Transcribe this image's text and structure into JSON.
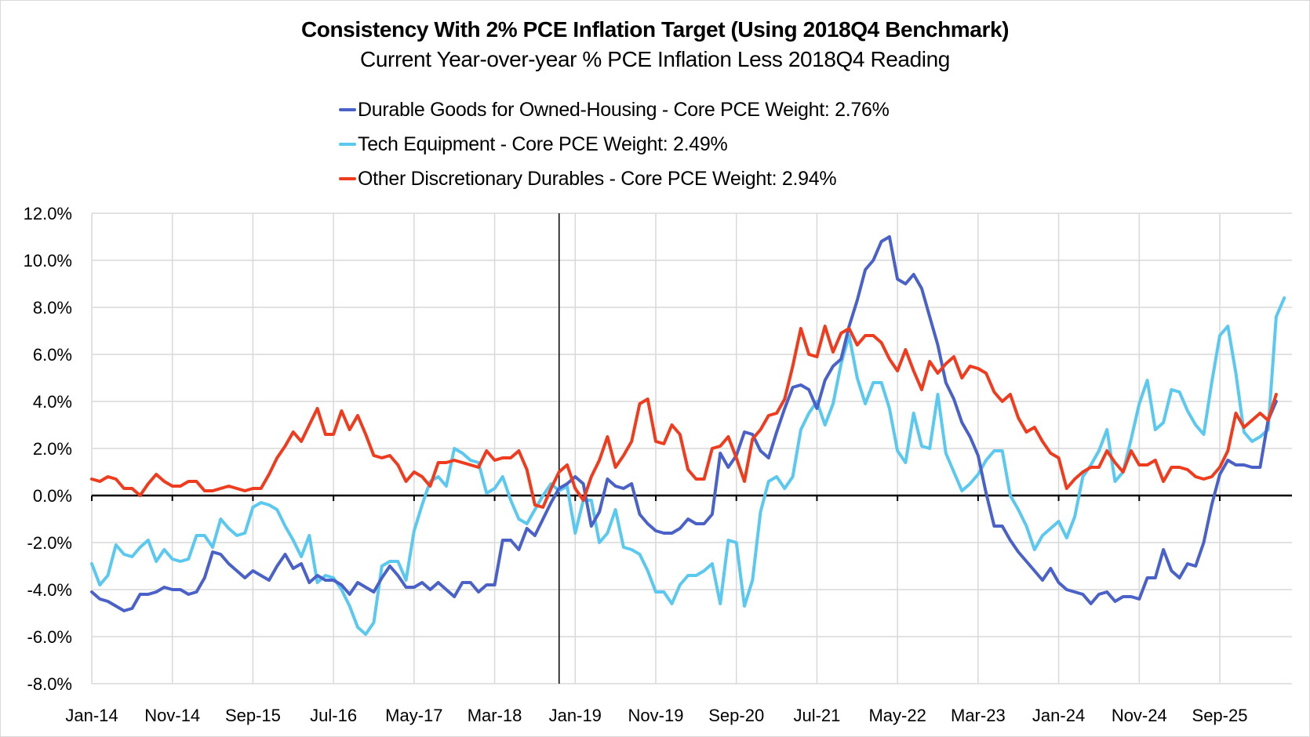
{
  "chart_data": {
    "type": "line",
    "title": "Consistency With 2% PCE Inflation Target (Using 2018Q4 Benchmark)",
    "subtitle": "Current Year-over-year % PCE Inflation Less 2018Q4 Reading",
    "xlabel": "",
    "ylabel": "",
    "ylim": [
      -8,
      12
    ],
    "yticks": [
      12,
      10,
      8,
      6,
      4,
      2,
      0,
      -2,
      -4,
      -6,
      -8
    ],
    "ytick_labels": [
      "12.0%",
      "10.0%",
      "8.0%",
      "6.0%",
      "4.0%",
      "2.0%",
      "0.0%",
      "-2.0%",
      "-4.0%",
      "-6.0%",
      "-8.0%"
    ],
    "x_start": "Jan-14",
    "x_end_axis": "Jun-26",
    "x_ticks": [
      "Jan-14",
      "Nov-14",
      "Sep-15",
      "Jul-16",
      "May-17",
      "Mar-18",
      "Jan-19",
      "Nov-19",
      "Sep-20",
      "Jul-21",
      "May-22",
      "Mar-23",
      "Jan-24",
      "Nov-24",
      "Sep-25"
    ],
    "x_tick_interval_months": 10,
    "vertical_marker": "Nov-18",
    "grid": true,
    "legend_position": "top-center",
    "series": [
      {
        "name": "Durable Goods for Owned-Housing - Core PCE Weight: 2.76%",
        "color": "#4a62c8",
        "values": [
          -4.1,
          -4.4,
          -4.5,
          -4.7,
          -4.9,
          -4.8,
          -4.2,
          -4.2,
          -4.1,
          -3.9,
          -4.0,
          -4.0,
          -4.2,
          -4.1,
          -3.5,
          -2.4,
          -2.5,
          -2.9,
          -3.2,
          -3.5,
          -3.2,
          -3.4,
          -3.6,
          -3.0,
          -2.5,
          -3.1,
          -2.9,
          -3.7,
          -3.4,
          -3.6,
          -3.6,
          -3.8,
          -4.2,
          -3.7,
          -3.9,
          -4.1,
          -3.5,
          -3.0,
          -3.4,
          -3.9,
          -3.9,
          -3.7,
          -4.0,
          -3.7,
          -4.0,
          -4.3,
          -3.7,
          -3.7,
          -4.1,
          -3.8,
          -3.8,
          -1.9,
          -1.9,
          -2.3,
          -1.4,
          -1.7,
          -1.0,
          -0.3,
          0.3,
          0.5,
          0.8,
          0.5,
          -1.3,
          -0.7,
          0.7,
          0.4,
          0.3,
          0.5,
          -0.8,
          -1.2,
          -1.5,
          -1.6,
          -1.6,
          -1.4,
          -1.0,
          -1.2,
          -1.2,
          -0.8,
          1.8,
          1.2,
          1.7,
          2.7,
          2.6,
          1.9,
          1.6,
          2.7,
          3.7,
          4.6,
          4.7,
          4.5,
          3.7,
          4.9,
          5.5,
          5.8,
          7.2,
          8.3,
          9.6,
          10.0,
          10.8,
          11.0,
          9.2,
          9.0,
          9.4,
          8.8,
          7.6,
          6.4,
          4.8,
          4.1,
          3.1,
          2.5,
          1.7,
          0.1,
          -1.3,
          -1.3,
          -1.9,
          -2.4,
          -2.8,
          -3.2,
          -3.6,
          -3.1,
          -3.7,
          -4.0,
          -4.1,
          -4.2,
          -4.6,
          -4.2,
          -4.1,
          -4.5,
          -4.3,
          -4.3,
          -4.4,
          -3.5,
          -3.5,
          -2.3,
          -3.2,
          -3.5,
          -2.9,
          -3.0,
          -2.0,
          -0.4,
          0.9,
          1.5,
          1.3,
          1.3,
          1.2,
          1.2,
          3.2,
          4.0
        ]
      },
      {
        "name": "Tech Equipment - Core PCE Weight: 2.49%",
        "color": "#5bc8f0",
        "values": [
          -2.9,
          -3.8,
          -3.4,
          -2.1,
          -2.5,
          -2.6,
          -2.2,
          -1.9,
          -2.8,
          -2.3,
          -2.7,
          -2.8,
          -2.7,
          -1.7,
          -1.7,
          -2.2,
          -1.0,
          -1.4,
          -1.7,
          -1.6,
          -0.5,
          -0.3,
          -0.4,
          -0.6,
          -1.3,
          -1.9,
          -2.6,
          -1.7,
          -3.7,
          -3.4,
          -3.5,
          -4.0,
          -4.7,
          -5.6,
          -5.9,
          -5.4,
          -3.0,
          -2.8,
          -2.8,
          -3.6,
          -1.5,
          -0.4,
          0.6,
          0.8,
          0.4,
          2.0,
          1.8,
          1.5,
          1.4,
          0.1,
          0.3,
          0.8,
          -0.2,
          -1.0,
          -1.2,
          -0.6,
          0.0,
          0.5,
          0.2,
          0.4,
          -1.6,
          -0.2,
          -0.2,
          -2.0,
          -1.6,
          -0.6,
          -2.2,
          -2.3,
          -2.5,
          -3.2,
          -4.1,
          -4.1,
          -4.6,
          -3.8,
          -3.4,
          -3.4,
          -3.2,
          -2.9,
          -4.6,
          -1.9,
          -2.0,
          -4.7,
          -3.6,
          -0.7,
          0.6,
          0.8,
          0.3,
          0.8,
          2.8,
          3.5,
          4.0,
          3.0,
          3.9,
          5.6,
          6.8,
          5.0,
          3.9,
          4.8,
          4.8,
          3.7,
          1.9,
          1.4,
          3.5,
          2.1,
          2.0,
          4.3,
          1.8,
          1.0,
          0.2,
          0.5,
          0.9,
          1.5,
          1.9,
          1.9,
          0.0,
          -0.6,
          -1.3,
          -2.3,
          -1.7,
          -1.4,
          -1.1,
          -1.8,
          -0.9,
          0.8,
          1.3,
          1.9,
          2.8,
          0.6,
          1.0,
          2.4,
          3.9,
          4.9,
          2.8,
          3.1,
          4.5,
          4.4,
          3.6,
          3.0,
          2.6,
          4.8,
          6.8,
          7.2,
          5.2,
          2.7,
          2.3,
          2.5,
          2.8,
          7.6,
          8.4
        ]
      },
      {
        "name": "Other Discretionary Durables - Core PCE Weight: 2.94%",
        "color": "#f03c1e",
        "values": [
          0.7,
          0.6,
          0.8,
          0.7,
          0.3,
          0.3,
          0.0,
          0.5,
          0.9,
          0.6,
          0.4,
          0.4,
          0.6,
          0.6,
          0.2,
          0.2,
          0.3,
          0.4,
          0.3,
          0.2,
          0.3,
          0.3,
          0.9,
          1.6,
          2.1,
          2.7,
          2.3,
          3.0,
          3.7,
          2.6,
          2.6,
          3.6,
          2.8,
          3.4,
          2.6,
          1.7,
          1.6,
          1.7,
          1.3,
          0.6,
          1.0,
          0.8,
          0.4,
          1.4,
          1.4,
          1.5,
          1.4,
          1.3,
          1.2,
          1.9,
          1.5,
          1.6,
          1.6,
          1.9,
          1.1,
          -0.4,
          -0.5,
          0.3,
          1.0,
          1.3,
          0.3,
          -0.2,
          0.8,
          1.5,
          2.5,
          1.2,
          1.7,
          2.3,
          3.9,
          4.1,
          2.3,
          2.2,
          3.0,
          2.6,
          1.1,
          0.7,
          0.7,
          2.0,
          2.1,
          2.5,
          1.6,
          0.6,
          2.4,
          2.8,
          3.4,
          3.5,
          4.1,
          5.5,
          7.1,
          6.0,
          5.9,
          7.2,
          6.1,
          6.9,
          7.1,
          6.4,
          6.8,
          6.8,
          6.5,
          5.8,
          5.3,
          6.2,
          5.3,
          4.5,
          5.7,
          5.2,
          5.6,
          5.9,
          5.0,
          5.5,
          5.4,
          5.2,
          4.4,
          4.0,
          4.3,
          3.3,
          2.7,
          2.9,
          2.3,
          1.8,
          1.6,
          0.3,
          0.7,
          1.0,
          1.2,
          1.2,
          1.9,
          1.4,
          1.0,
          1.9,
          1.3,
          1.3,
          1.5,
          0.6,
          1.2,
          1.2,
          1.1,
          0.8,
          0.7,
          0.8,
          1.2,
          1.9,
          3.5,
          2.9,
          3.2,
          3.5,
          3.2,
          4.3
        ]
      }
    ]
  }
}
